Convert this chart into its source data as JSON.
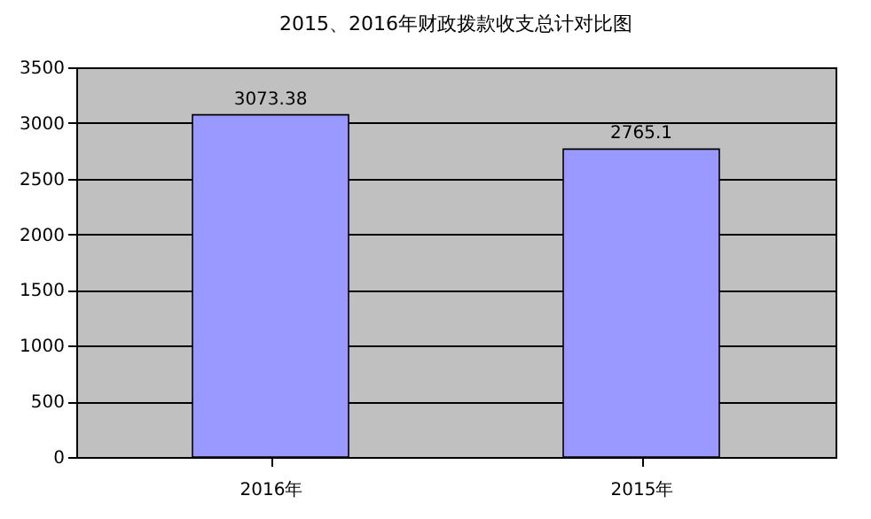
{
  "chart_data": {
    "type": "bar",
    "title": "2015、2016年财政拨款收支总计对比图",
    "categories": [
      "2016年",
      "2015年"
    ],
    "values": [
      3073.38,
      2765.1
    ],
    "color": "#9999ff",
    "ylim": [
      0,
      3500
    ],
    "yticks": [
      0,
      500,
      1000,
      1500,
      2000,
      2500,
      3000,
      3500
    ],
    "grid": "y",
    "data_labels": true
  }
}
